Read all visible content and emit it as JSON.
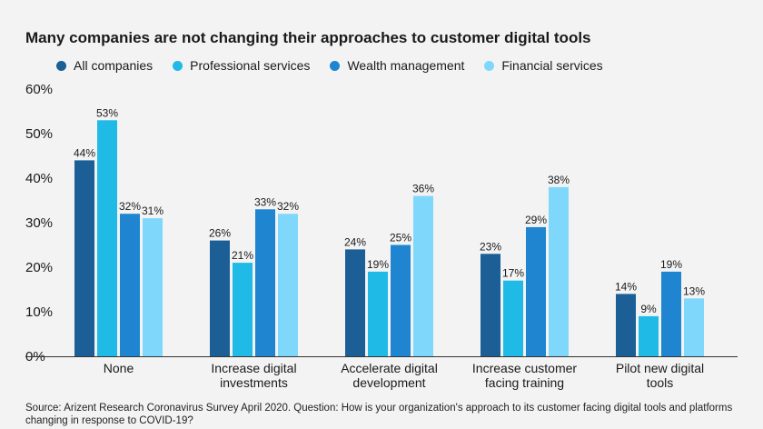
{
  "title": "Many companies are not changing their approaches to customer digital tools",
  "source": "Source: Arizent Research Coronavirus Survey April 2020. Question: How is your organization's approach to its customer facing digital tools and platforms changing in response to COVID-19?",
  "colors": {
    "all_companies": "#1b5f96",
    "professional_services": "#1fbbe6",
    "wealth_management": "#1f85d0",
    "financial_services": "#7fd8fb"
  },
  "chart_data": {
    "type": "bar",
    "title": "Many companies are not changing their approaches to customer digital tools",
    "categories": [
      [
        "None"
      ],
      [
        "Increase digital",
        "investments"
      ],
      [
        "Accelerate digital",
        "development"
      ],
      [
        "Increase customer",
        "facing training"
      ],
      [
        "Pilot new digital",
        "tools"
      ]
    ],
    "series": [
      {
        "name": "All companies",
        "color": "#1b5f96",
        "values": [
          44,
          26,
          24,
          23,
          14
        ]
      },
      {
        "name": "Professional services",
        "color": "#1fbbe6",
        "values": [
          53,
          21,
          19,
          17,
          9
        ]
      },
      {
        "name": "Wealth management",
        "color": "#1f85d0",
        "values": [
          32,
          33,
          25,
          29,
          19
        ]
      },
      {
        "name": "Financial services",
        "color": "#7fd8fb",
        "values": [
          31,
          32,
          36,
          38,
          13
        ]
      }
    ],
    "ylim": [
      0,
      60
    ],
    "yticks": [
      "0%",
      "10%",
      "20%",
      "30%",
      "40%",
      "50%",
      "60%"
    ],
    "value_suffix": "%",
    "legend_position": "top",
    "grid": false
  }
}
